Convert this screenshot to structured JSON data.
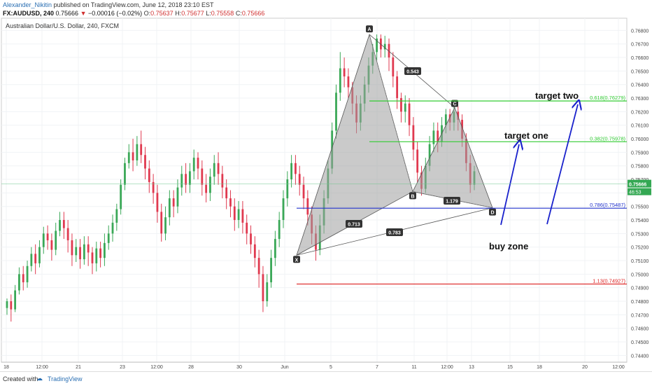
{
  "header": {
    "author": "Alexander_Nikitin",
    "published": " published on TradingView.com, June 12, 2018 23:10 EST",
    "symbol": "FX:AUDUSD, 240",
    "last": "0.75666",
    "change": "−0.00016 (−0.02%)",
    "open_label": "O:",
    "open": "0.75637",
    "high_label": "H:",
    "high": "0.75677",
    "low_label": "L:",
    "low": "0.75558",
    "close_label": "C:",
    "close": "0.75666"
  },
  "footer": {
    "created": "Created with",
    "brand": "TradingView"
  },
  "chart_data": {
    "type": "candlestick",
    "title": "Australian Dollar/U.S. Dollar, 240, FXCM",
    "ylim": [
      0.7435,
      0.7689
    ],
    "y_ticks": [
      "0.74400",
      "0.74500",
      "0.74600",
      "0.74700",
      "0.74800",
      "0.74900",
      "0.75000",
      "0.75100",
      "0.75200",
      "0.75300",
      "0.75400",
      "0.75500",
      "0.75600",
      "0.75700",
      "0.75800",
      "0.75900",
      "0.76000",
      "0.76100",
      "0.76200",
      "0.76300",
      "0.76400",
      "0.76500",
      "0.76600",
      "0.76700",
      "0.76800"
    ],
    "x_ticks": [
      "18",
      "12:00",
      "21",
      "23",
      "12:00",
      "28",
      "30",
      "Jun",
      "5",
      "7",
      "11",
      "12:00",
      "13",
      "15",
      "18",
      "20",
      "12:00"
    ],
    "current_price": {
      "label": "0.75666",
      "value": 0.75666
    },
    "timer_label": "46:53",
    "harmonic_pattern": {
      "points": [
        {
          "label": "X",
          "price": 0.7514
        },
        {
          "label": "A",
          "price": 0.7677
        },
        {
          "label": "B",
          "price": 0.7561
        },
        {
          "label": "C",
          "price": 0.7623
        },
        {
          "label": "D",
          "price": 0.7549
        }
      ],
      "ratios": [
        "0.543",
        "0.713",
        "1.179",
        "0.783"
      ]
    },
    "levels": [
      {
        "label": "0.618(0.76279)",
        "value": 0.76279,
        "color": "#33cc33"
      },
      {
        "label": "0.382(0.75978)",
        "value": 0.75978,
        "color": "#33cc33"
      },
      {
        "label": "0.786(0.75487)",
        "value": 0.75487,
        "color": "#2233cc"
      },
      {
        "label": "1.13(0.74927)",
        "value": 0.74927,
        "color": "#dd2222"
      }
    ],
    "annotations": [
      "target two",
      "target one",
      "buy zone"
    ],
    "candles": [
      [
        0.7475,
        0.748,
        0.747,
        0.7482
      ],
      [
        0.748,
        0.7474,
        0.7465,
        0.7485
      ],
      [
        0.7474,
        0.7488,
        0.7472,
        0.7492
      ],
      [
        0.7488,
        0.75,
        0.7485,
        0.7505
      ],
      [
        0.75,
        0.7494,
        0.7488,
        0.7506
      ],
      [
        0.7494,
        0.7506,
        0.749,
        0.751
      ],
      [
        0.7506,
        0.7515,
        0.7502,
        0.752
      ],
      [
        0.7515,
        0.7508,
        0.75,
        0.7522
      ],
      [
        0.7508,
        0.752,
        0.7505,
        0.7525
      ],
      [
        0.752,
        0.753,
        0.7515,
        0.7535
      ],
      [
        0.753,
        0.7525,
        0.7518,
        0.7536
      ],
      [
        0.7525,
        0.7518,
        0.751,
        0.753
      ],
      [
        0.7518,
        0.7532,
        0.7514,
        0.7538
      ],
      [
        0.7532,
        0.754,
        0.7528,
        0.7546
      ],
      [
        0.754,
        0.7534,
        0.7526,
        0.7546
      ],
      [
        0.7534,
        0.7525,
        0.7516,
        0.754
      ],
      [
        0.7525,
        0.7514,
        0.7506,
        0.753
      ],
      [
        0.7514,
        0.752,
        0.7509,
        0.7526
      ],
      [
        0.752,
        0.7511,
        0.7504,
        0.7526
      ],
      [
        0.7511,
        0.7522,
        0.7507,
        0.7528
      ],
      [
        0.7522,
        0.7516,
        0.7506,
        0.7528
      ],
      [
        0.7516,
        0.7508,
        0.75,
        0.752
      ],
      [
        0.7508,
        0.7519,
        0.7502,
        0.7524
      ],
      [
        0.7519,
        0.7512,
        0.7505,
        0.7524
      ],
      [
        0.7512,
        0.7523,
        0.7506,
        0.753
      ],
      [
        0.7523,
        0.753,
        0.7518,
        0.7536
      ],
      [
        0.753,
        0.7538,
        0.7524,
        0.7544
      ],
      [
        0.7538,
        0.7548,
        0.7532,
        0.7552
      ],
      [
        0.7548,
        0.7566,
        0.7544,
        0.757
      ],
      [
        0.7566,
        0.7582,
        0.7562,
        0.7586
      ],
      [
        0.7582,
        0.759,
        0.7578,
        0.7596
      ],
      [
        0.759,
        0.7584,
        0.7576,
        0.76
      ],
      [
        0.7584,
        0.7596,
        0.758,
        0.7602
      ],
      [
        0.7596,
        0.7588,
        0.7582,
        0.7606
      ],
      [
        0.7588,
        0.7578,
        0.757,
        0.7594
      ],
      [
        0.7578,
        0.7568,
        0.756,
        0.7584
      ],
      [
        0.7568,
        0.756,
        0.7552,
        0.7574
      ],
      [
        0.756,
        0.7546,
        0.7538,
        0.7566
      ],
      [
        0.7546,
        0.753,
        0.7524,
        0.7552
      ],
      [
        0.753,
        0.7542,
        0.7525,
        0.755
      ],
      [
        0.7542,
        0.7556,
        0.7536,
        0.7562
      ],
      [
        0.7556,
        0.755,
        0.7542,
        0.7562
      ],
      [
        0.755,
        0.7564,
        0.7545,
        0.757
      ],
      [
        0.7564,
        0.7574,
        0.7558,
        0.758
      ],
      [
        0.7574,
        0.7566,
        0.756,
        0.7582
      ],
      [
        0.7566,
        0.7576,
        0.756,
        0.7582
      ],
      [
        0.7576,
        0.7586,
        0.757,
        0.7592
      ],
      [
        0.7586,
        0.7578,
        0.757,
        0.759
      ],
      [
        0.7578,
        0.7566,
        0.7558,
        0.7584
      ],
      [
        0.7566,
        0.756,
        0.7553,
        0.7574
      ],
      [
        0.756,
        0.7572,
        0.7554,
        0.7578
      ],
      [
        0.7572,
        0.7582,
        0.7566,
        0.7588
      ],
      [
        0.7582,
        0.7574,
        0.7566,
        0.759
      ],
      [
        0.7574,
        0.7564,
        0.7556,
        0.758
      ],
      [
        0.7564,
        0.7556,
        0.7548,
        0.757
      ],
      [
        0.7556,
        0.755,
        0.7542,
        0.7562
      ],
      [
        0.755,
        0.754,
        0.7532,
        0.7556
      ],
      [
        0.754,
        0.7548,
        0.7534,
        0.7554
      ],
      [
        0.7548,
        0.7538,
        0.753,
        0.7554
      ],
      [
        0.7538,
        0.753,
        0.7522,
        0.7544
      ],
      [
        0.753,
        0.7522,
        0.7515,
        0.7536
      ],
      [
        0.7522,
        0.7512,
        0.7505,
        0.7528
      ],
      [
        0.7512,
        0.75,
        0.749,
        0.7518
      ],
      [
        0.75,
        0.748,
        0.7472,
        0.7506
      ],
      [
        0.748,
        0.7494,
        0.7476,
        0.75
      ],
      [
        0.7494,
        0.7512,
        0.749,
        0.7518
      ],
      [
        0.7512,
        0.7526,
        0.7506,
        0.7532
      ],
      [
        0.7526,
        0.754,
        0.752,
        0.7546
      ],
      [
        0.754,
        0.7556,
        0.7534,
        0.7562
      ],
      [
        0.7556,
        0.757,
        0.755,
        0.7576
      ],
      [
        0.757,
        0.7582,
        0.7564,
        0.7588
      ],
      [
        0.7582,
        0.7574,
        0.7566,
        0.7588
      ],
      [
        0.7574,
        0.7566,
        0.7558,
        0.758
      ],
      [
        0.7566,
        0.7556,
        0.7548,
        0.7572
      ],
      [
        0.7556,
        0.7544,
        0.7536,
        0.7562
      ],
      [
        0.7544,
        0.753,
        0.7522,
        0.755
      ],
      [
        0.753,
        0.7518,
        0.751,
        0.7536
      ],
      [
        0.7518,
        0.7536,
        0.7514,
        0.7544
      ],
      [
        0.7536,
        0.7556,
        0.753,
        0.7562
      ],
      [
        0.7556,
        0.7578,
        0.7552,
        0.7584
      ],
      [
        0.7578,
        0.7606,
        0.7574,
        0.7612
      ],
      [
        0.7606,
        0.7634,
        0.76,
        0.764
      ],
      [
        0.7634,
        0.7652,
        0.7628,
        0.7664
      ],
      [
        0.7652,
        0.7646,
        0.7638,
        0.766
      ],
      [
        0.7646,
        0.7638,
        0.763,
        0.7652
      ],
      [
        0.7638,
        0.7626,
        0.7618,
        0.7642
      ],
      [
        0.7626,
        0.7612,
        0.7604,
        0.7632
      ],
      [
        0.7612,
        0.7626,
        0.7606,
        0.7632
      ],
      [
        0.7626,
        0.764,
        0.762,
        0.7646
      ],
      [
        0.764,
        0.7654,
        0.7634,
        0.766
      ],
      [
        0.7654,
        0.7664,
        0.7648,
        0.767
      ],
      [
        0.7664,
        0.7674,
        0.7658,
        0.7677
      ],
      [
        0.7674,
        0.7666,
        0.766,
        0.7677
      ],
      [
        0.7666,
        0.767,
        0.766,
        0.7676
      ],
      [
        0.767,
        0.766,
        0.765,
        0.7674
      ],
      [
        0.766,
        0.7646,
        0.7638,
        0.7664
      ],
      [
        0.7646,
        0.763,
        0.7622,
        0.765
      ],
      [
        0.763,
        0.762,
        0.7612,
        0.7634
      ],
      [
        0.762,
        0.7626,
        0.7612,
        0.7632
      ],
      [
        0.7626,
        0.761,
        0.7602,
        0.763
      ],
      [
        0.761,
        0.7592,
        0.7584,
        0.7616
      ],
      [
        0.7592,
        0.7575,
        0.7568,
        0.7598
      ],
      [
        0.7575,
        0.7563,
        0.7558,
        0.758
      ],
      [
        0.7563,
        0.758,
        0.756,
        0.7586
      ],
      [
        0.758,
        0.7596,
        0.7576,
        0.7602
      ],
      [
        0.7596,
        0.7606,
        0.759,
        0.7612
      ],
      [
        0.7606,
        0.7598,
        0.759,
        0.7612
      ],
      [
        0.7598,
        0.761,
        0.7594,
        0.7616
      ],
      [
        0.761,
        0.7618,
        0.7604,
        0.7622
      ],
      [
        0.7618,
        0.7612,
        0.7606,
        0.7622
      ],
      [
        0.7612,
        0.762,
        0.7606,
        0.7624
      ],
      [
        0.762,
        0.7614,
        0.7606,
        0.7624
      ],
      [
        0.7614,
        0.76,
        0.7594,
        0.7618
      ],
      [
        0.76,
        0.7582,
        0.7576,
        0.7604
      ],
      [
        0.7582,
        0.7566,
        0.756,
        0.7588
      ],
      [
        0.7566,
        0.7576,
        0.7562,
        0.758
      ]
    ]
  }
}
